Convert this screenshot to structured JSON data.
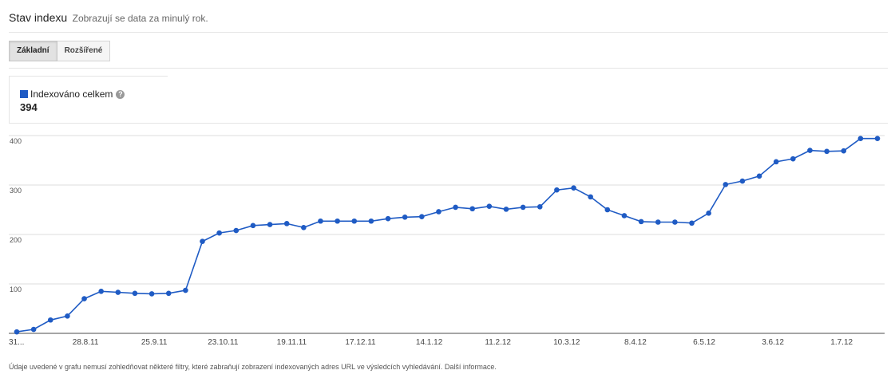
{
  "header": {
    "title": "Stav indexu",
    "subtitle": "Zobrazují se data za minulý rok."
  },
  "tabs": [
    {
      "label": "Základní",
      "active": true
    },
    {
      "label": "Rozšířené",
      "active": false
    }
  ],
  "legend": {
    "label": "Indexováno celkem",
    "value": "394",
    "color": "#1f5bc4",
    "help_icon": "question-mark-icon"
  },
  "chart_data": {
    "type": "line",
    "grid": true,
    "ylim": [
      0,
      400
    ],
    "yticks": [
      "100",
      "200",
      "300",
      "400"
    ],
    "xtick_labels": [
      "31...",
      "28.8.11",
      "25.9.11",
      "23.10.11",
      "19.11.11",
      "17.12.11",
      "14.1.12",
      "11.2.12",
      "10.3.12",
      "8.4.12",
      "6.5.12",
      "3.6.12",
      "1.7.12"
    ],
    "series": [
      {
        "name": "Indexováno celkem",
        "color": "#1f5bc4",
        "values": [
          3,
          8,
          27,
          35,
          70,
          85,
          83,
          81,
          80,
          81,
          87,
          186,
          203,
          208,
          218,
          220,
          222,
          214,
          227,
          227,
          227,
          227,
          232,
          235,
          236,
          246,
          255,
          252,
          257,
          251,
          255,
          256,
          290,
          294,
          276,
          250,
          238,
          226,
          225,
          225,
          223,
          243,
          301,
          308,
          318,
          347,
          353,
          370,
          368,
          369,
          394,
          394
        ]
      }
    ]
  },
  "footnote": {
    "text": "Údaje uvedené v grafu nemusí zohledňovat některé filtry, které zabraňují zobrazení indexovaných adres URL ve výsledcích vyhledávání.",
    "link": "Další informace."
  }
}
